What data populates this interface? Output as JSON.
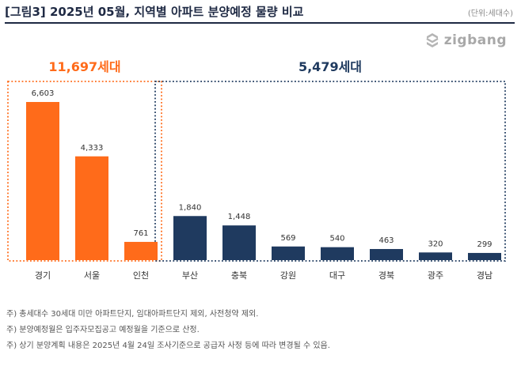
{
  "header": {
    "title": "[그림3] 2025년 05월, 지역별 아파트 분양예정 물량 비교",
    "unit": "(단위:세대수)"
  },
  "logo": {
    "text": "zigbang",
    "icon": "zigbang-logo-icon",
    "color": "#a8a8a8"
  },
  "chart_data": {
    "type": "bar",
    "categories": [
      "경기",
      "서울",
      "인천",
      "부산",
      "충북",
      "강원",
      "대구",
      "경북",
      "광주",
      "경남"
    ],
    "values": [
      6603,
      4333,
      761,
      1840,
      1448,
      569,
      540,
      463,
      320,
      299
    ],
    "value_labels": [
      "6,603",
      "4,333",
      "761",
      "1,840",
      "1,448",
      "569",
      "540",
      "463",
      "320",
      "299"
    ],
    "groups": [
      {
        "label": "11,697세대",
        "color": "#ff6b1a",
        "from": 0,
        "to": 2
      },
      {
        "label": "5,479세대",
        "color": "#1f3a5f",
        "from": 3,
        "to": 9
      }
    ],
    "ylim": [
      0,
      6603
    ]
  },
  "notes": [
    "주) 총세대수 30세대 미만 아파트단지, 임대아파트단지 제외, 사전청약 제외.",
    "주) 분양예정월은 입주자모집공고 예정월을 기준으로 산정.",
    "주) 상기 분양계획 내용은 2025년 4월 24일 조사기준으로 공급자 사정 등에 따라 변경될 수 있음."
  ]
}
